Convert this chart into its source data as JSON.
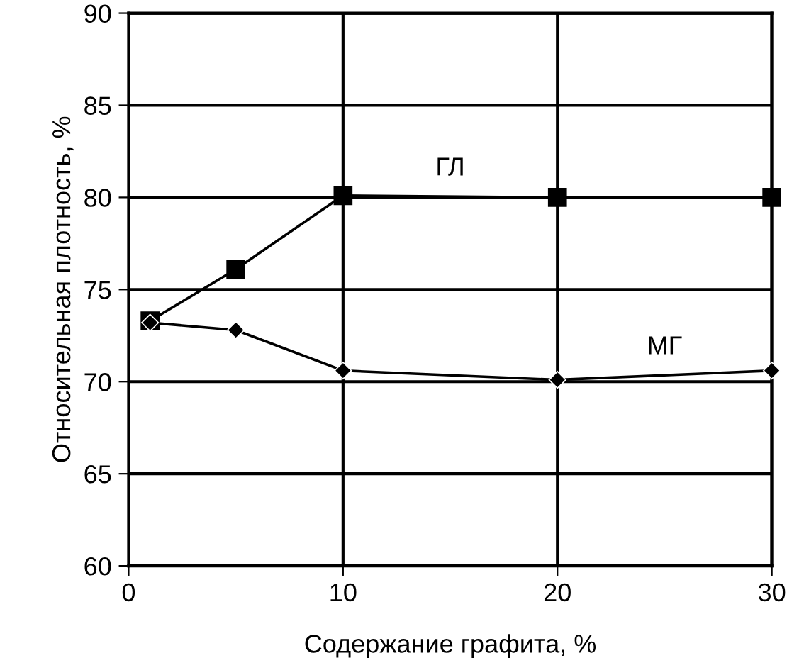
{
  "chart_data": {
    "type": "line",
    "xlabel": "Содержание графита, %",
    "ylabel": "Относительная плотность, %",
    "x": [
      1,
      5,
      10,
      20,
      30
    ],
    "series": [
      {
        "name": "ГЛ",
        "color": "#000000",
        "marker": "square",
        "values": [
          73.3,
          76.1,
          80.1,
          80.0,
          80.0
        ]
      },
      {
        "name": "МГ",
        "color": "#000000",
        "marker": "diamond",
        "values": [
          73.2,
          72.8,
          70.6,
          70.1,
          70.6
        ]
      }
    ],
    "xlim": [
      0,
      30
    ],
    "xticks": [
      0,
      10,
      20,
      30
    ],
    "ylim": [
      60,
      90
    ],
    "yticks": [
      60,
      65,
      70,
      75,
      80,
      85,
      90
    ],
    "grid": true,
    "line_style": "solid"
  }
}
